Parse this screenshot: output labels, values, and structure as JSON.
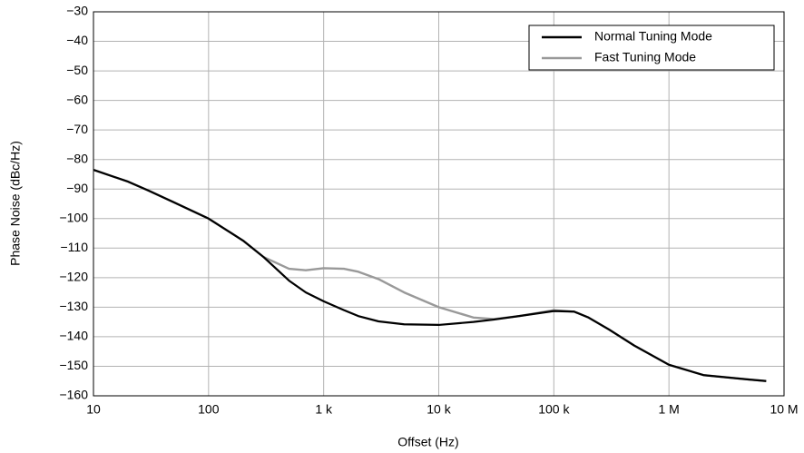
{
  "chart_data": {
    "type": "line",
    "xlabel": "Offset (Hz)",
    "ylabel": "Phase Noise (dBc/Hz)",
    "xscale": "log",
    "grid": true,
    "legend": "upper right",
    "x": [
      10,
      20,
      30,
      50,
      100,
      200,
      300,
      500,
      700,
      1000,
      1500,
      2000,
      3000,
      5000,
      10000,
      20000,
      30000,
      50000,
      100000,
      150000,
      200000,
      300000,
      500000,
      1000000,
      2000000,
      5000000,
      7000000
    ],
    "series": [
      {
        "name": "Normal Tuning Mode",
        "color": "#000000",
        "values": [
          -83.5,
          -87.5,
          -90.5,
          -94.5,
          -100,
          -107.5,
          -113,
          -121,
          -125,
          -128,
          -131,
          -133,
          -134.8,
          -135.8,
          -136,
          -135,
          -134.2,
          -133,
          -131.3,
          -131.5,
          -133.5,
          -137.5,
          -143,
          -149.5,
          -153,
          -154.5,
          -155
        ]
      },
      {
        "name": "Fast Tuning Mode",
        "color": "#999999",
        "values": [
          -83.5,
          -87.5,
          -90.5,
          -94.5,
          -100,
          -107.5,
          -113,
          -117,
          -117.5,
          -116.8,
          -117,
          -118,
          -120.5,
          -125,
          -130,
          -133.5,
          -134,
          -133,
          -131,
          -131.5,
          -133.5,
          -137.5,
          -143,
          -149.5,
          -153,
          -154.5,
          -155
        ]
      }
    ],
    "xlim": [
      10,
      10000000
    ],
    "xticks": [
      10,
      100,
      {
        "value": 1000,
        "label": "1 k"
      },
      {
        "value": 10000,
        "label": "10 k"
      },
      {
        "value": 100000,
        "label": "100 k"
      },
      {
        "value": 1000000,
        "label": "1 M"
      },
      {
        "value": 10000000,
        "label": "10 M"
      }
    ],
    "ylim": [
      -160,
      -30
    ],
    "yticks": [
      {
        "value": -30,
        "label": "−30"
      },
      {
        "value": -40,
        "label": "−40"
      },
      {
        "value": -50,
        "label": "−50"
      },
      {
        "value": -60,
        "label": "−60"
      },
      {
        "value": -70,
        "label": "−70"
      },
      {
        "value": -80,
        "label": "−80"
      },
      {
        "value": -90,
        "label": "−90"
      },
      {
        "value": -100,
        "label": "−100"
      },
      {
        "value": -110,
        "label": "−110"
      },
      {
        "value": -120,
        "label": "−120"
      },
      {
        "value": -130,
        "label": "−130"
      },
      {
        "value": -140,
        "label": "−140"
      },
      {
        "value": -150,
        "label": "−150"
      },
      {
        "value": -160,
        "label": "−160"
      }
    ]
  }
}
